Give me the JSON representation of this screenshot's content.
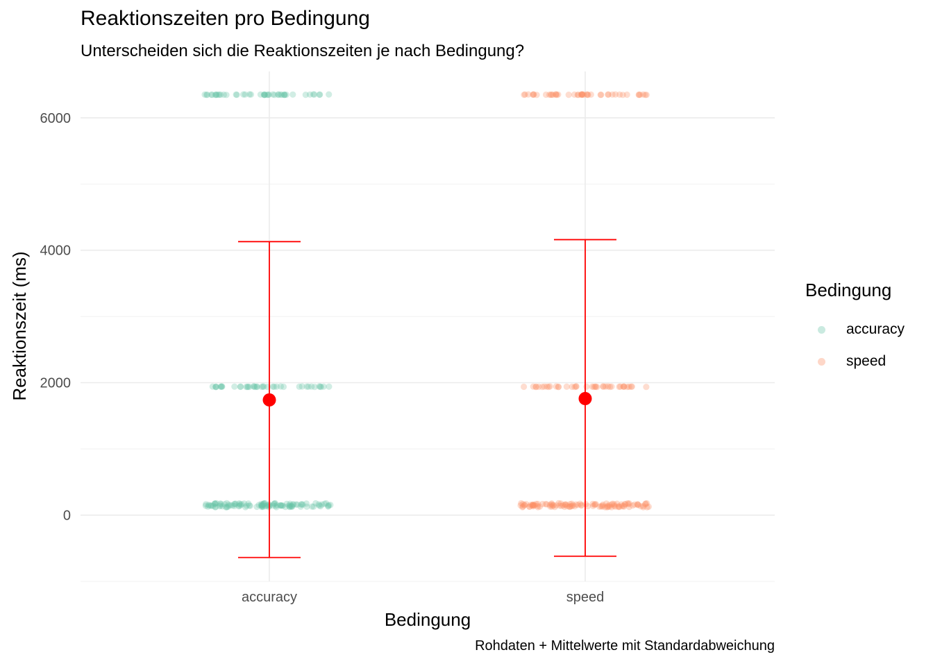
{
  "chart_data": {
    "type": "scatter",
    "title": "Reaktionszeiten pro Bedingung",
    "subtitle": "Unterscheiden sich die Reaktionszeiten je nach Bedingung?",
    "caption": "Rohdaten + Mittelwerte mit Standardabweichung",
    "xlabel": "Bedingung",
    "ylabel": "Reaktionszeit (ms)",
    "categories": [
      "accuracy",
      "speed"
    ],
    "ylim": [
      -1000,
      6700
    ],
    "y_ticks": [
      0,
      2000,
      4000,
      6000
    ],
    "grid": true,
    "legend": {
      "title": "Bedingung",
      "position": "right",
      "entries": [
        {
          "label": "accuracy",
          "color": "#66c2a5"
        },
        {
          "label": "speed",
          "color": "#fc8d62"
        }
      ]
    },
    "raw_data_clusters": [
      {
        "category": "accuracy",
        "y_values": [
          150,
          1940,
          6350
        ]
      },
      {
        "category": "speed",
        "y_values": [
          150,
          1940,
          6350
        ]
      }
    ],
    "summary": [
      {
        "category": "accuracy",
        "mean": 1740,
        "ymin": -640,
        "ymax": 4130
      },
      {
        "category": "speed",
        "mean": 1760,
        "ymin": -620,
        "ymax": 4160
      }
    ],
    "summary_color": "#ff0000"
  }
}
